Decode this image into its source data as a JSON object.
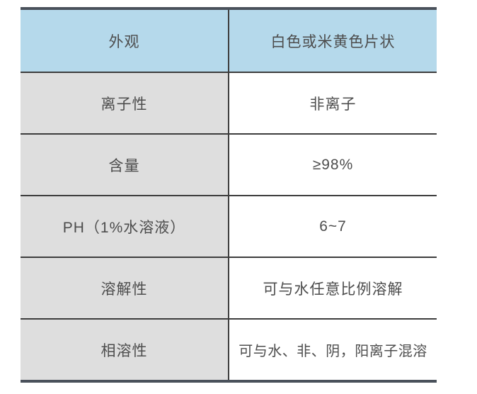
{
  "table": {
    "rows": [
      {
        "label": "外观",
        "value": "白色或米黄色片状"
      },
      {
        "label": "离子性",
        "value": "非离子"
      },
      {
        "label": "含量",
        "value": "≥98%"
      },
      {
        "label": "PH（1%水溶液）",
        "value": "6~7"
      },
      {
        "label": "溶解性",
        "value": "可与水任意比例溶解"
      },
      {
        "label": "相溶性",
        "value": "可与水、非、阴，阳离子混溶"
      }
    ],
    "colors": {
      "header_bg": "#b5d9eb",
      "label_bg": "#dedede",
      "value_bg": "#ffffff",
      "heavy_border": "#4a515b",
      "line_border": "#3d3d3d",
      "text": "#4d4d4d"
    }
  }
}
